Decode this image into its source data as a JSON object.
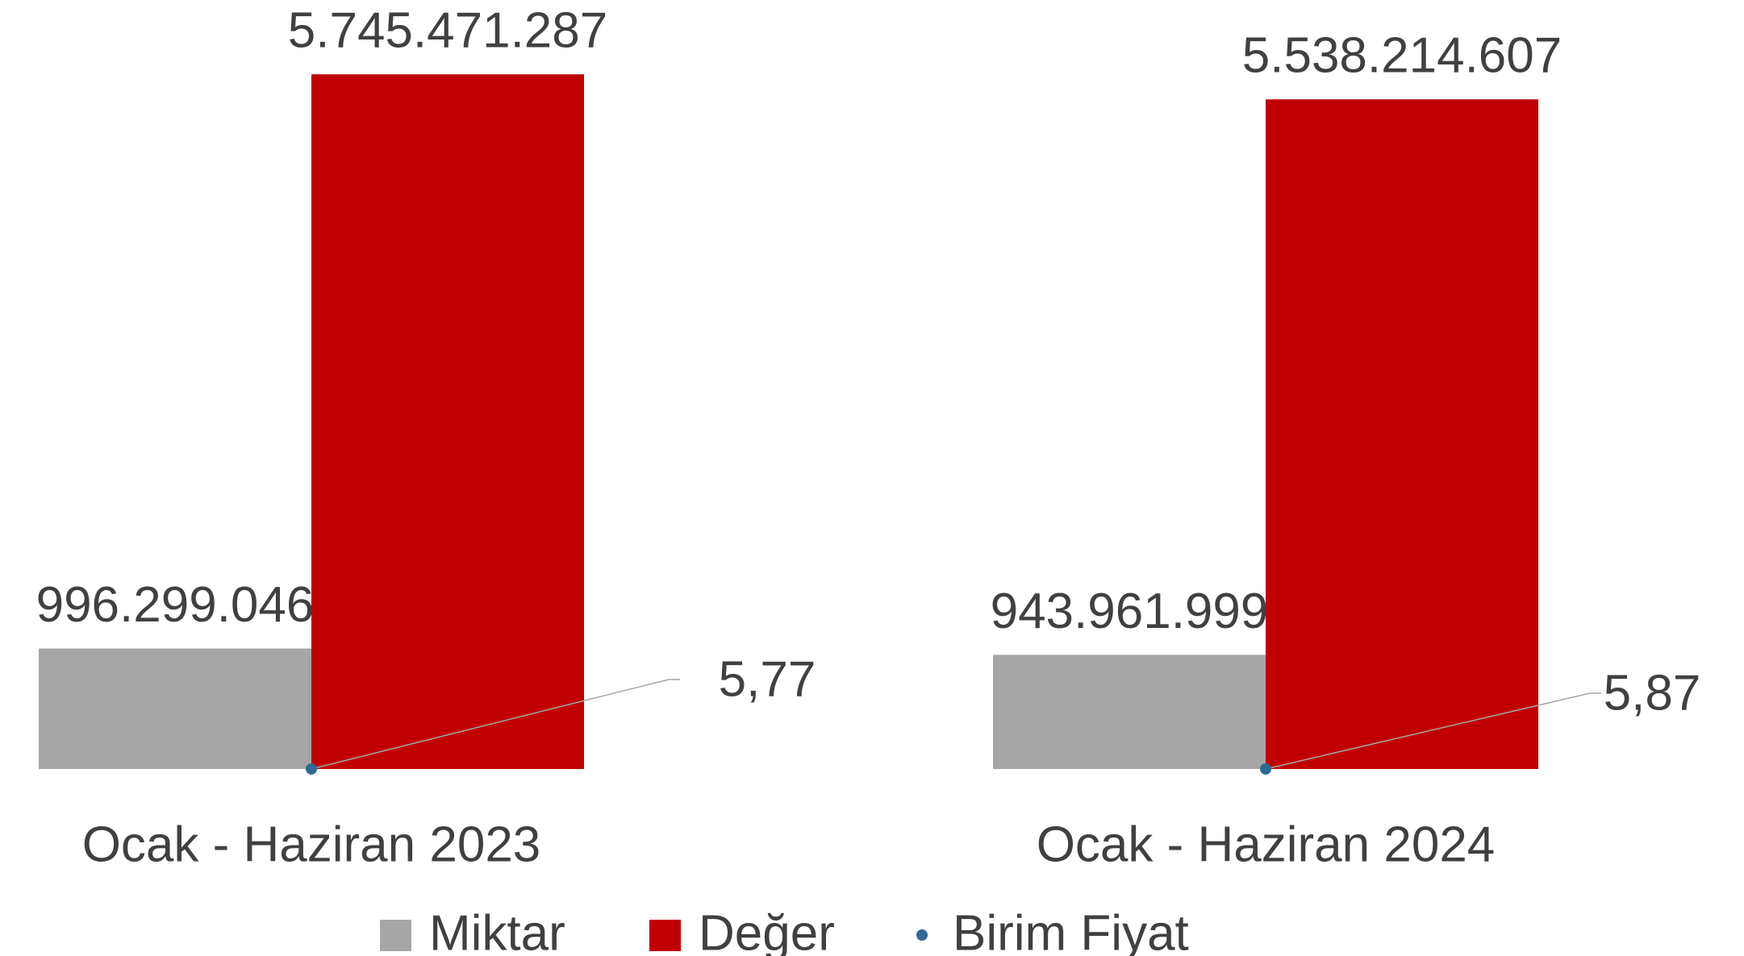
{
  "chart_data": {
    "type": "bar",
    "categories": [
      "Ocak - Haziran 2023",
      "Ocak - Haziran 2024"
    ],
    "series": [
      {
        "name": "Miktar",
        "color": "#a6a6a6",
        "values": [
          996299046,
          943961999
        ],
        "value_labels": [
          "996.299.046",
          "943.961.999"
        ]
      },
      {
        "name": "Değer",
        "color": "#c00000",
        "values": [
          5745471287,
          5538214607
        ],
        "value_labels": [
          "5.745.471.287",
          "5.538.214.607"
        ]
      },
      {
        "name": "Birim Fiyat",
        "color": "#2e6a94",
        "values": [
          5.77,
          5.87
        ],
        "value_labels": [
          "5,77",
          "5,87"
        ]
      }
    ],
    "ylim": [
      0,
      6000000000
    ],
    "grid": false,
    "legend": "bottom"
  }
}
